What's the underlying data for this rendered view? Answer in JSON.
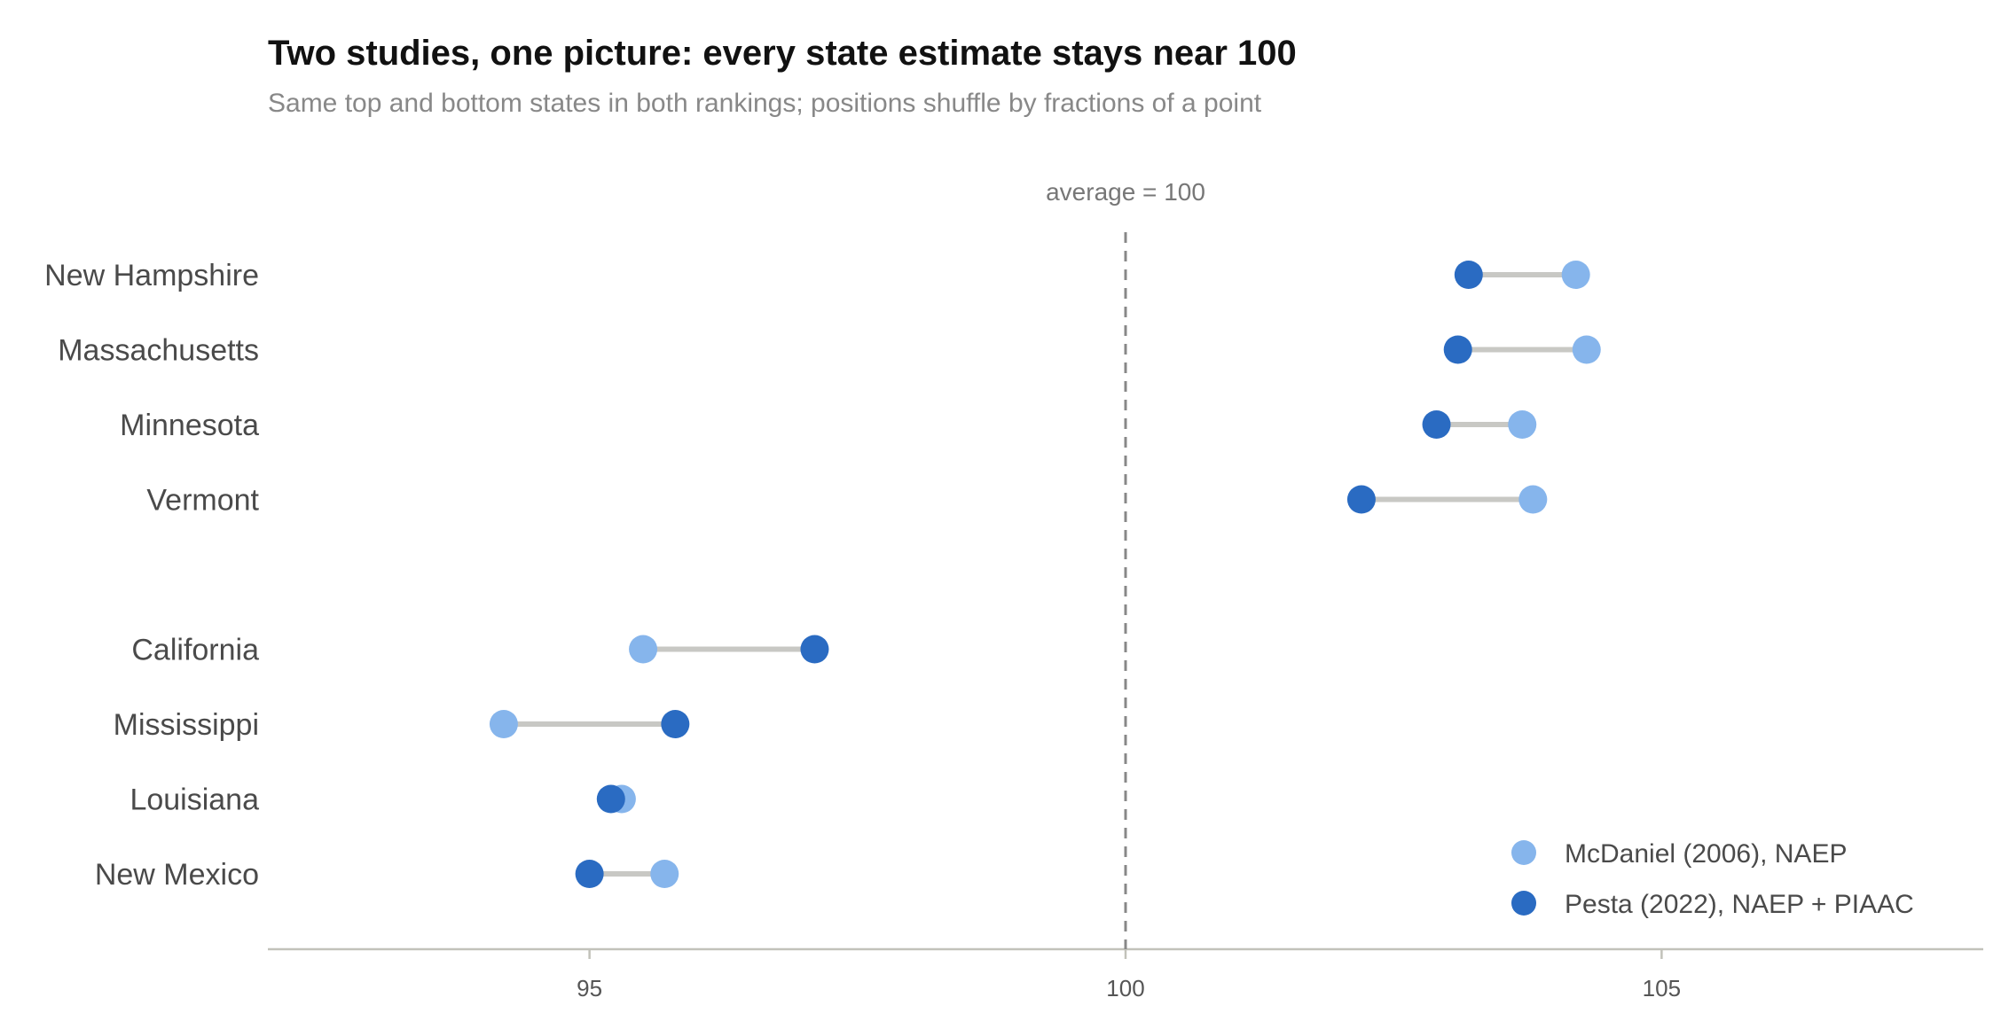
{
  "title": "Two studies, one picture: every state estimate stays near 100",
  "subtitle": "Same top and bottom states in both rankings; positions shuffle by fractions of a point",
  "reference_label": "average = 100",
  "chart_data": {
    "type": "dumbbell",
    "xlabel": "",
    "ylabel": "",
    "xlim": [
      92,
      108
    ],
    "xticks": [
      95,
      100,
      105
    ],
    "tick_labels": [
      "95",
      "100",
      "105"
    ],
    "reference_line": 100,
    "grid": false,
    "legend_position": "bottom-right",
    "categories": [
      "New Hampshire",
      "Massachusetts",
      "Minnesota",
      "Vermont",
      "",
      "California",
      "Mississippi",
      "Louisiana",
      "New Mexico"
    ],
    "series": [
      {
        "name": "McDaniel (2006), NAEP",
        "color": "#86b5ec",
        "values": [
          104.2,
          104.3,
          103.7,
          103.8,
          null,
          95.5,
          94.2,
          95.3,
          95.7
        ]
      },
      {
        "name": "Pesta (2022), NAEP + PIAAC",
        "color": "#2a6bc2",
        "values": [
          103.2,
          103.1,
          102.9,
          102.2,
          null,
          97.1,
          95.8,
          95.2,
          95.0
        ]
      }
    ],
    "connector_color": "#c8c8c4"
  }
}
